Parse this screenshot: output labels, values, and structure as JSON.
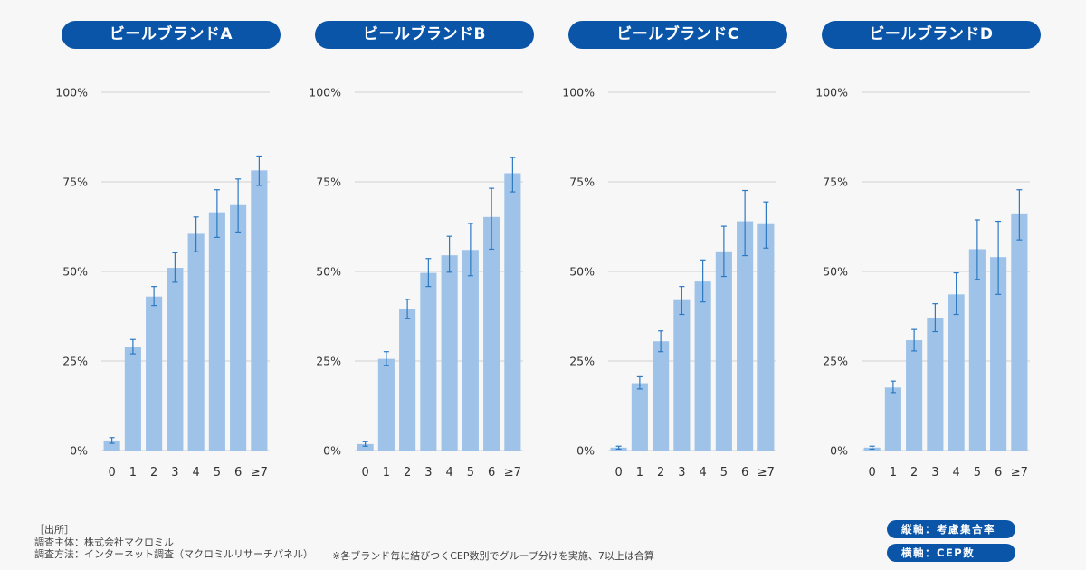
{
  "chart_data": [
    {
      "type": "bar",
      "title": "ビールブランドA",
      "categories": [
        "0",
        "1",
        "2",
        "3",
        "4",
        "5",
        "6",
        "≥7"
      ],
      "values": [
        2.8,
        28.8,
        43.0,
        51.0,
        60.5,
        66.5,
        68.5,
        78.2
      ],
      "error_low": [
        2.0,
        27.0,
        40.5,
        47.0,
        55.5,
        59.5,
        61.0,
        74.0
      ],
      "error_high": [
        3.6,
        31.0,
        45.8,
        55.2,
        65.2,
        72.8,
        75.8,
        82.2
      ],
      "ylim": [
        0,
        100
      ],
      "yticks": [
        "0%",
        "25%",
        "50%",
        "75%",
        "100%"
      ],
      "xlabel": "",
      "ylabel": ""
    },
    {
      "type": "bar",
      "title": "ビールブランドB",
      "categories": [
        "0",
        "1",
        "2",
        "3",
        "4",
        "5",
        "6",
        "≥7"
      ],
      "values": [
        1.8,
        25.6,
        39.5,
        49.6,
        54.5,
        56.0,
        65.2,
        77.4
      ],
      "error_low": [
        1.2,
        23.8,
        36.8,
        45.8,
        49.8,
        48.8,
        56.2,
        72.2
      ],
      "error_high": [
        2.6,
        27.6,
        42.2,
        53.6,
        59.8,
        63.4,
        73.2,
        81.8
      ],
      "ylim": [
        0,
        100
      ],
      "yticks": [
        "0%",
        "25%",
        "50%",
        "75%",
        "100%"
      ],
      "xlabel": "",
      "ylabel": ""
    },
    {
      "type": "bar",
      "title": "ビールブランドC",
      "categories": [
        "0",
        "1",
        "2",
        "3",
        "4",
        "5",
        "6",
        "≥7"
      ],
      "values": [
        0.8,
        18.8,
        30.5,
        42.0,
        47.2,
        55.6,
        64.0,
        63.2
      ],
      "error_low": [
        0.4,
        17.2,
        27.6,
        38.0,
        41.5,
        48.6,
        54.4,
        56.5
      ],
      "error_high": [
        1.2,
        20.6,
        33.4,
        45.8,
        53.2,
        62.6,
        72.6,
        69.4
      ],
      "ylim": [
        0,
        100
      ],
      "yticks": [
        "0%",
        "25%",
        "50%",
        "75%",
        "100%"
      ],
      "xlabel": "",
      "ylabel": ""
    },
    {
      "type": "bar",
      "title": "ビールブランドD",
      "categories": [
        "0",
        "1",
        "2",
        "3",
        "4",
        "5",
        "6",
        "≥7"
      ],
      "values": [
        0.8,
        17.6,
        30.8,
        37.0,
        43.6,
        56.2,
        54.0,
        66.2
      ],
      "error_low": [
        0.4,
        16.2,
        27.8,
        33.2,
        38.0,
        47.8,
        43.6,
        58.8
      ],
      "error_high": [
        1.2,
        19.4,
        33.8,
        41.0,
        49.6,
        64.4,
        64.0,
        72.8
      ],
      "ylim": [
        0,
        100
      ],
      "yticks": [
        "0%",
        "25%",
        "50%",
        "75%",
        "100%"
      ],
      "xlabel": "",
      "ylabel": ""
    }
  ],
  "colors": {
    "accent": "#0a55a8",
    "bar": "#9fc3e8",
    "error_bar": "#2b79c2",
    "background": "#f7f7f7"
  },
  "footer": {
    "source_label": "［出所］",
    "survey_subject": "調査主体：株式会社マクロミル",
    "survey_method": "調査方法：インターネット調査（マクロミルリサーチパネル）",
    "note": "※各ブランド毎に結びつくCEP数別でグループ分けを実施、7以上は合算"
  },
  "axis_legend": {
    "vertical": "縦軸：考慮集合率",
    "horizontal": "横軸：CEP数"
  }
}
